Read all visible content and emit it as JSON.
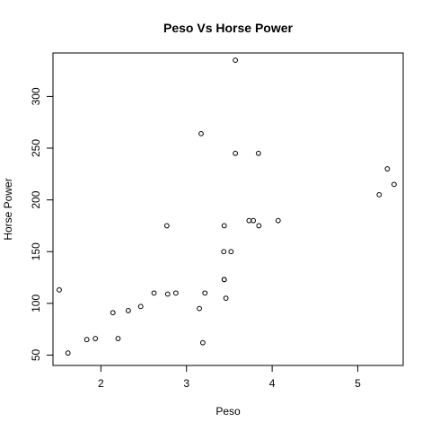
{
  "chart_data": {
    "type": "scatter",
    "title": "Peso Vs Horse Power",
    "xlabel": "Peso",
    "ylabel": "Horse Power",
    "xlim": [
      1.44,
      5.53
    ],
    "ylim": [
      40,
      342
    ],
    "xticks": [
      2,
      3,
      4,
      5
    ],
    "yticks": [
      50,
      100,
      150,
      200,
      250,
      300
    ],
    "grid": false,
    "legend": "none",
    "series": [
      {
        "marker": "open-circle",
        "points": [
          [
            2.62,
            110
          ],
          [
            2.875,
            110
          ],
          [
            2.32,
            93
          ],
          [
            3.215,
            110
          ],
          [
            3.44,
            175
          ],
          [
            3.46,
            105
          ],
          [
            3.57,
            245
          ],
          [
            3.19,
            62
          ],
          [
            3.15,
            95
          ],
          [
            3.44,
            123
          ],
          [
            3.44,
            123
          ],
          [
            4.07,
            180
          ],
          [
            3.73,
            180
          ],
          [
            3.78,
            180
          ],
          [
            5.25,
            205
          ],
          [
            5.424,
            215
          ],
          [
            5.345,
            230
          ],
          [
            2.2,
            66
          ],
          [
            1.615,
            52
          ],
          [
            1.835,
            65
          ],
          [
            2.465,
            97
          ],
          [
            3.52,
            150
          ],
          [
            3.435,
            150
          ],
          [
            3.84,
            245
          ],
          [
            3.845,
            175
          ],
          [
            1.935,
            66
          ],
          [
            2.14,
            91
          ],
          [
            1.513,
            113
          ],
          [
            3.17,
            264
          ],
          [
            2.77,
            175
          ],
          [
            3.57,
            335
          ],
          [
            2.78,
            109
          ]
        ]
      }
    ]
  }
}
